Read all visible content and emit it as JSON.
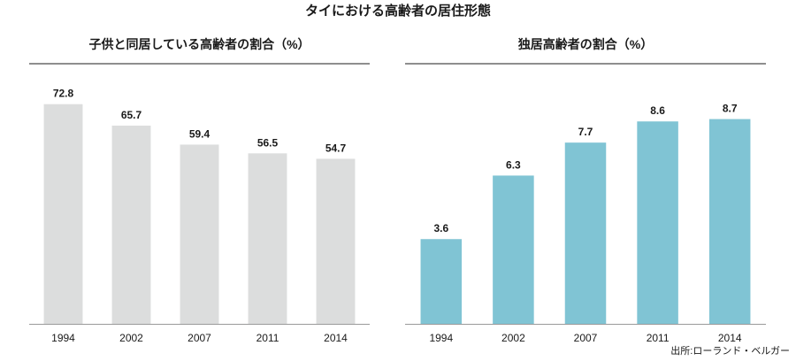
{
  "title": "タイにおける高齢者の居住形態",
  "source": "出所:ローランド・ベルガー",
  "chart_data": [
    {
      "type": "bar",
      "title": "子供と同居している高齢者の割合（%）",
      "categories": [
        "1994",
        "2002",
        "2007",
        "2011",
        "2014"
      ],
      "values": [
        72.8,
        65.7,
        59.4,
        56.5,
        54.7
      ],
      "ylim": [
        0,
        78
      ],
      "grid": false,
      "color": "#dcdddd"
    },
    {
      "type": "bar",
      "title": "独居高齢者の割合（%）",
      "categories": [
        "1994",
        "2002",
        "2007",
        "2011",
        "2014"
      ],
      "values": [
        3.6,
        6.3,
        7.7,
        8.6,
        8.7
      ],
      "ylim": [
        0,
        10
      ],
      "grid": false,
      "color": "#80c4d4"
    }
  ]
}
